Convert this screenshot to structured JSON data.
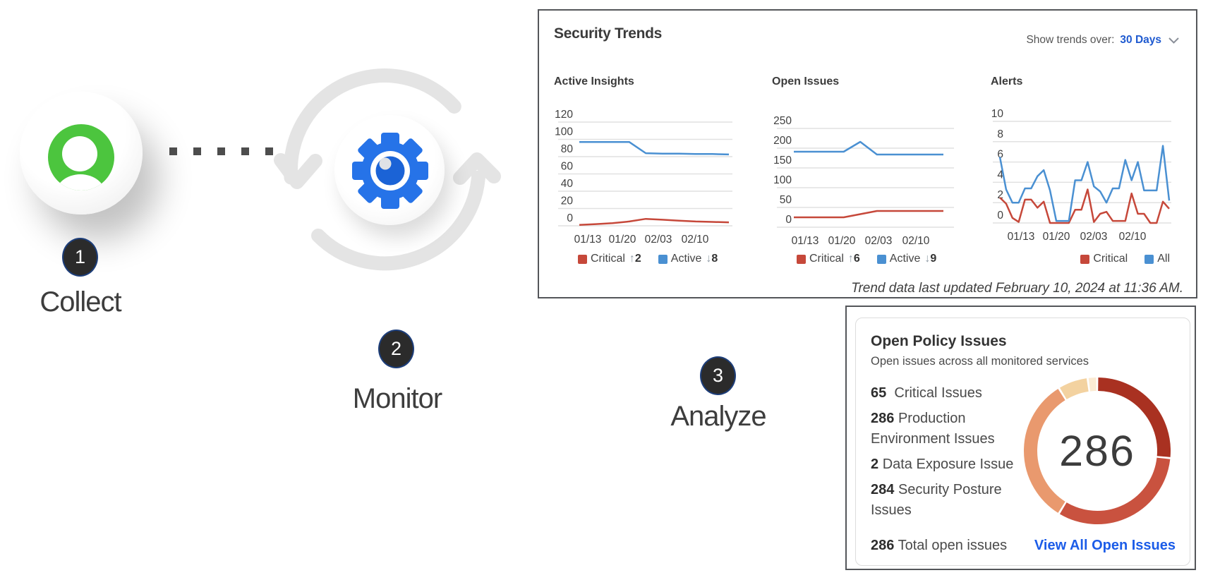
{
  "workflow": {
    "steps": [
      {
        "number": "1",
        "label": "Collect"
      },
      {
        "number": "2",
        "label": "Monitor"
      },
      {
        "number": "3",
        "label": "Analyze"
      }
    ]
  },
  "security_trends": {
    "title": "Security Trends",
    "period_label": "Show trends over:",
    "period_value": "30 Days",
    "footer": "Trend data last updated February 10, 2024 at 11:36 AM."
  },
  "chart_data": [
    {
      "type": "line",
      "title": "Active Insights",
      "ylim": [
        0,
        120
      ],
      "yticks": [
        0,
        20,
        40,
        60,
        80,
        100,
        120
      ],
      "xticklabels": [
        "01/13",
        "01/20",
        "02/03",
        "02/10"
      ],
      "grid": true,
      "legend_position": "bottom-left",
      "series": [
        {
          "name": "Critical",
          "color": "#C6483A",
          "delta_dir": "up",
          "delta": "2",
          "values": [
            1,
            2,
            3,
            5,
            8,
            7,
            6,
            5,
            4.5,
            4
          ]
        },
        {
          "name": "Active",
          "color": "#4A90D2",
          "delta_dir": "down",
          "delta": "8",
          "values": [
            97,
            97,
            97,
            97,
            84,
            83.5,
            83.5,
            83,
            83,
            82.5
          ]
        }
      ]
    },
    {
      "type": "line",
      "title": "Open Issues",
      "ylim": [
        0,
        250
      ],
      "yticks": [
        0,
        50,
        100,
        150,
        200,
        250
      ],
      "xticklabels": [
        "01/13",
        "01/20",
        "02/03",
        "02/10"
      ],
      "grid": true,
      "legend_position": "bottom-left",
      "series": [
        {
          "name": "Critical",
          "color": "#C6483A",
          "delta_dir": "up",
          "delta": "6",
          "values": [
            25,
            25,
            25,
            25,
            33,
            41,
            41,
            41,
            41,
            41
          ]
        },
        {
          "name": "Active",
          "color": "#4A90D2",
          "delta_dir": "down",
          "delta": "9",
          "values": [
            191,
            191,
            191,
            191,
            216,
            184,
            184,
            184,
            184,
            184
          ]
        }
      ]
    },
    {
      "type": "line",
      "title": "Alerts",
      "ylim": [
        0,
        10
      ],
      "yticks": [
        0,
        2,
        4,
        6,
        8,
        10
      ],
      "xticklabels": [
        "01/13",
        "01/20",
        "02/03",
        "02/10"
      ],
      "grid": true,
      "legend_position": "bottom-right",
      "series": [
        {
          "name": "Critical",
          "color": "#C6483A",
          "values": [
            2.5,
            1.9,
            0.5,
            0.1,
            2.3,
            2.3,
            1.5,
            2.1,
            0,
            0,
            0,
            0,
            1.3,
            1.3,
            3.3,
            0.1,
            0.9,
            1.1,
            0.2,
            0.2,
            0.2,
            2.9,
            0.9,
            0.9,
            0,
            0,
            2.1,
            1.4
          ]
        },
        {
          "name": "All",
          "color": "#4A90D2",
          "values": [
            6.5,
            3.3,
            2,
            2,
            3.4,
            3.4,
            4.6,
            5.2,
            3.2,
            0.2,
            0.2,
            0.2,
            4.2,
            4.2,
            6,
            3.6,
            3.1,
            2,
            3.4,
            3.4,
            6.2,
            4.2,
            6,
            3.2,
            3.2,
            3.2,
            7.6,
            2.2
          ]
        }
      ]
    },
    {
      "type": "donut",
      "title": "Open Policy Issues",
      "center_label": "286",
      "segments": [
        {
          "value": 76,
          "color": "#A93121"
        },
        {
          "value": 92,
          "color": "#C9523F"
        },
        {
          "value": 93,
          "color": "#E9996E"
        },
        {
          "value": 19,
          "color": "#F3D2A0"
        },
        {
          "value": 6,
          "color": "#FBEBD3"
        }
      ]
    }
  ],
  "open_policy_issues": {
    "title": "Open Policy Issues",
    "subtitle": "Open issues across all monitored services",
    "items": [
      {
        "value": "65",
        "label": "Critical Issues"
      },
      {
        "value": "286",
        "label": "Production Environment Issues"
      },
      {
        "value": "2",
        "label": "Data Exposure Issue"
      },
      {
        "value": "284",
        "label": "Security Posture Issues"
      }
    ],
    "total": {
      "value": "286",
      "label": "Total open issues"
    },
    "link": "View All Open Issues",
    "donut_center": "286"
  }
}
